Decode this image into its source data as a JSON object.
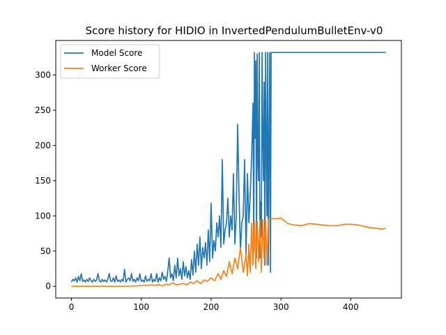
{
  "chart_data": {
    "type": "line",
    "title": "Score history for HIDIO in InvertedPendulumBulletEnv-v0",
    "xlabel": "",
    "ylabel": "",
    "xlim": [
      -22.5,
      472.5
    ],
    "ylim": [
      -16.6,
      349
    ],
    "xticks": [
      0,
      100,
      200,
      300,
      400
    ],
    "yticks": [
      0,
      50,
      100,
      150,
      200,
      250,
      300
    ],
    "grid": false,
    "legend_position": "top-left",
    "series": [
      {
        "name": "Model Score",
        "color": "#1f77b4",
        "points": [
          [
            0,
            6
          ],
          [
            2,
            10
          ],
          [
            4,
            8
          ],
          [
            6,
            12
          ],
          [
            8,
            6
          ],
          [
            10,
            14
          ],
          [
            12,
            8
          ],
          [
            14,
            18
          ],
          [
            16,
            7
          ],
          [
            18,
            9
          ],
          [
            20,
            6
          ],
          [
            22,
            10
          ],
          [
            24,
            7
          ],
          [
            26,
            12
          ],
          [
            28,
            8
          ],
          [
            30,
            6
          ],
          [
            32,
            10
          ],
          [
            34,
            7
          ],
          [
            36,
            9
          ],
          [
            38,
            18
          ],
          [
            40,
            8
          ],
          [
            42,
            6
          ],
          [
            44,
            10
          ],
          [
            46,
            7
          ],
          [
            48,
            9
          ],
          [
            50,
            6
          ],
          [
            52,
            10
          ],
          [
            54,
            18
          ],
          [
            56,
            8
          ],
          [
            58,
            7
          ],
          [
            60,
            12
          ],
          [
            62,
            6
          ],
          [
            64,
            15
          ],
          [
            66,
            7
          ],
          [
            68,
            9
          ],
          [
            70,
            6
          ],
          [
            72,
            10
          ],
          [
            74,
            7
          ],
          [
            76,
            24
          ],
          [
            78,
            6
          ],
          [
            80,
            10
          ],
          [
            82,
            12
          ],
          [
            84,
            8
          ],
          [
            86,
            18
          ],
          [
            88,
            7
          ],
          [
            90,
            10
          ],
          [
            92,
            6
          ],
          [
            94,
            12
          ],
          [
            96,
            8
          ],
          [
            98,
            18
          ],
          [
            100,
            7
          ],
          [
            102,
            9
          ],
          [
            104,
            6
          ],
          [
            106,
            15
          ],
          [
            108,
            7
          ],
          [
            110,
            10
          ],
          [
            112,
            8
          ],
          [
            114,
            18
          ],
          [
            116,
            6
          ],
          [
            118,
            10
          ],
          [
            120,
            7
          ],
          [
            122,
            18
          ],
          [
            124,
            6
          ],
          [
            126,
            12
          ],
          [
            128,
            8
          ],
          [
            130,
            20
          ],
          [
            132,
            10
          ],
          [
            134,
            14
          ],
          [
            136,
            7
          ],
          [
            138,
            22
          ],
          [
            140,
            40
          ],
          [
            142,
            12
          ],
          [
            144,
            18
          ],
          [
            146,
            8
          ],
          [
            148,
            30
          ],
          [
            150,
            12
          ],
          [
            152,
            40
          ],
          [
            154,
            15
          ],
          [
            156,
            25
          ],
          [
            158,
            10
          ],
          [
            160,
            35
          ],
          [
            162,
            15
          ],
          [
            164,
            28
          ],
          [
            166,
            12
          ],
          [
            168,
            22
          ],
          [
            170,
            10
          ],
          [
            172,
            38
          ],
          [
            174,
            16
          ],
          [
            176,
            50
          ],
          [
            178,
            20
          ],
          [
            180,
            60
          ],
          [
            182,
            30
          ],
          [
            184,
            70
          ],
          [
            186,
            25
          ],
          [
            188,
            55
          ],
          [
            190,
            40
          ],
          [
            192,
            62
          ],
          [
            194,
            30
          ],
          [
            196,
            80
          ],
          [
            198,
            35
          ],
          [
            200,
            118
          ],
          [
            202,
            40
          ],
          [
            204,
            65
          ],
          [
            206,
            50
          ],
          [
            208,
            90
          ],
          [
            210,
            70
          ],
          [
            212,
            100
          ],
          [
            214,
            55
          ],
          [
            216,
            180
          ],
          [
            218,
            60
          ],
          [
            220,
            80
          ],
          [
            222,
            90
          ],
          [
            224,
            125
          ],
          [
            226,
            70
          ],
          [
            228,
            100
          ],
          [
            230,
            80
          ],
          [
            232,
            160
          ],
          [
            234,
            60
          ],
          [
            236,
            100
          ],
          [
            238,
            230
          ],
          [
            240,
            130
          ],
          [
            242,
            50
          ],
          [
            244,
            90
          ],
          [
            246,
            100
          ],
          [
            248,
            180
          ],
          [
            250,
            45
          ],
          [
            252,
            160
          ],
          [
            254,
            90
          ],
          [
            256,
            130
          ],
          [
            258,
            185
          ],
          [
            260,
            260
          ],
          [
            261,
            50
          ],
          [
            262,
            332
          ],
          [
            263,
            210
          ],
          [
            264,
            320
          ],
          [
            265,
            40
          ],
          [
            266,
            330
          ],
          [
            267,
            180
          ],
          [
            268,
            150
          ],
          [
            269,
            332
          ],
          [
            270,
            40
          ],
          [
            271,
            120
          ],
          [
            272,
            70
          ],
          [
            273,
            332
          ],
          [
            274,
            210
          ],
          [
            275,
            150
          ],
          [
            276,
            290
          ],
          [
            277,
            30
          ],
          [
            278,
            332
          ],
          [
            279,
            200
          ],
          [
            280,
            100
          ],
          [
            281,
            332
          ],
          [
            282,
            30
          ],
          [
            283,
            195
          ],
          [
            284,
            332
          ],
          [
            285,
            20
          ],
          [
            286,
            332
          ],
          [
            300,
            332
          ],
          [
            350,
            332
          ],
          [
            400,
            332
          ],
          [
            450,
            332
          ]
        ]
      },
      {
        "name": "Worker Score",
        "color": "#ff7f0e",
        "points": [
          [
            0,
            0
          ],
          [
            40,
            0
          ],
          [
            80,
            0
          ],
          [
            90,
            0.5
          ],
          [
            100,
            1
          ],
          [
            110,
            1.5
          ],
          [
            115,
            2
          ],
          [
            120,
            1
          ],
          [
            125,
            2.5
          ],
          [
            130,
            0.5
          ],
          [
            135,
            3
          ],
          [
            140,
            2
          ],
          [
            145,
            5
          ],
          [
            150,
            2
          ],
          [
            155,
            3
          ],
          [
            160,
            4
          ],
          [
            165,
            2
          ],
          [
            170,
            6
          ],
          [
            175,
            4
          ],
          [
            180,
            8
          ],
          [
            185,
            4
          ],
          [
            190,
            9
          ],
          [
            195,
            7
          ],
          [
            200,
            12
          ],
          [
            205,
            8
          ],
          [
            210,
            18
          ],
          [
            214,
            10
          ],
          [
            218,
            22
          ],
          [
            222,
            14
          ],
          [
            226,
            35
          ],
          [
            230,
            18
          ],
          [
            234,
            40
          ],
          [
            238,
            25
          ],
          [
            242,
            55
          ],
          [
            246,
            20
          ],
          [
            250,
            45
          ],
          [
            252,
            15
          ],
          [
            254,
            60
          ],
          [
            256,
            20
          ],
          [
            258,
            90
          ],
          [
            260,
            30
          ],
          [
            262,
            93
          ],
          [
            264,
            25
          ],
          [
            266,
            92
          ],
          [
            268,
            35
          ],
          [
            270,
            94
          ],
          [
            272,
            20
          ],
          [
            274,
            95
          ],
          [
            276,
            40
          ],
          [
            278,
            94
          ],
          [
            280,
            30
          ],
          [
            282,
            95
          ],
          [
            284,
            96
          ],
          [
            290,
            96
          ],
          [
            295,
            96
          ],
          [
            300,
            97
          ],
          [
            310,
            89
          ],
          [
            320,
            87
          ],
          [
            330,
            86
          ],
          [
            340,
            89
          ],
          [
            350,
            88
          ],
          [
            360,
            87
          ],
          [
            370,
            86
          ],
          [
            380,
            86
          ],
          [
            390,
            88
          ],
          [
            400,
            88
          ],
          [
            410,
            87
          ],
          [
            420,
            85
          ],
          [
            430,
            83
          ],
          [
            440,
            82
          ],
          [
            445,
            81
          ],
          [
            450,
            83
          ]
        ]
      }
    ]
  }
}
